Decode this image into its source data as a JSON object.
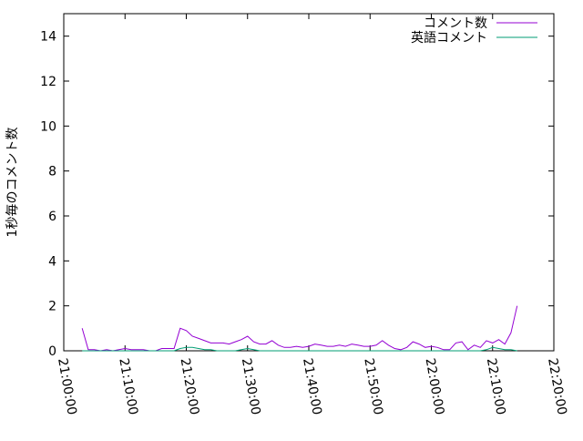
{
  "chart_data": {
    "type": "line",
    "title": "",
    "xlabel": "",
    "ylabel": "1秒毎のコメント数",
    "xlim": [
      "21:00:00",
      "22:20:00"
    ],
    "ylim": [
      0,
      15
    ],
    "x_ticks": [
      "21:00:00",
      "21:10:00",
      "21:20:00",
      "21:30:00",
      "21:40:00",
      "21:50:00",
      "22:00:00",
      "22:10:00",
      "22:20:00"
    ],
    "y_ticks": [
      0,
      2,
      4,
      6,
      8,
      10,
      12,
      14
    ],
    "grid": false,
    "legend_position": "top-right",
    "x_start": "21:03:00",
    "x_step": "00:01:00",
    "series": [
      {
        "name": "コメント数",
        "color": "#9400d3",
        "values": [
          1.0,
          0.05,
          0.05,
          0,
          0.05,
          0,
          0.05,
          0.1,
          0.05,
          0.05,
          0.05,
          0,
          0,
          0.1,
          0.1,
          0.1,
          1.0,
          0.9,
          0.65,
          0.55,
          0.45,
          0.35,
          0.35,
          0.35,
          0.3,
          0.4,
          0.5,
          0.65,
          0.4,
          0.3,
          0.3,
          0.45,
          0.25,
          0.15,
          0.15,
          0.2,
          0.15,
          0.2,
          0.3,
          0.25,
          0.2,
          0.2,
          0.25,
          0.2,
          0.3,
          0.25,
          0.2,
          0.2,
          0.25,
          0.45,
          0.25,
          0.1,
          0.05,
          0.15,
          0.4,
          0.3,
          0.15,
          0.2,
          0.15,
          0.05,
          0.05,
          0.35,
          0.4,
          0.05,
          0.25,
          0.15,
          0.45,
          0.35,
          0.5,
          0.3,
          0.8,
          2.0
        ]
      },
      {
        "name": "英語コメント",
        "color": "#009e73",
        "values": [
          0,
          0,
          0,
          0,
          0,
          0,
          0,
          0,
          0,
          0,
          0,
          0,
          0,
          0,
          0,
          0,
          0.1,
          0.15,
          0.15,
          0.1,
          0.05,
          0.05,
          0,
          0,
          0,
          0,
          0.05,
          0.1,
          0.05,
          0,
          0,
          0,
          0,
          0,
          0,
          0,
          0,
          0,
          0,
          0,
          0,
          0,
          0,
          0,
          0,
          0,
          0,
          0,
          0,
          0,
          0,
          0,
          0,
          0,
          0,
          0,
          0,
          0,
          0,
          0,
          0,
          0,
          0,
          0,
          0,
          0,
          0.05,
          0.15,
          0.1,
          0.05,
          0.05,
          0
        ]
      }
    ]
  }
}
